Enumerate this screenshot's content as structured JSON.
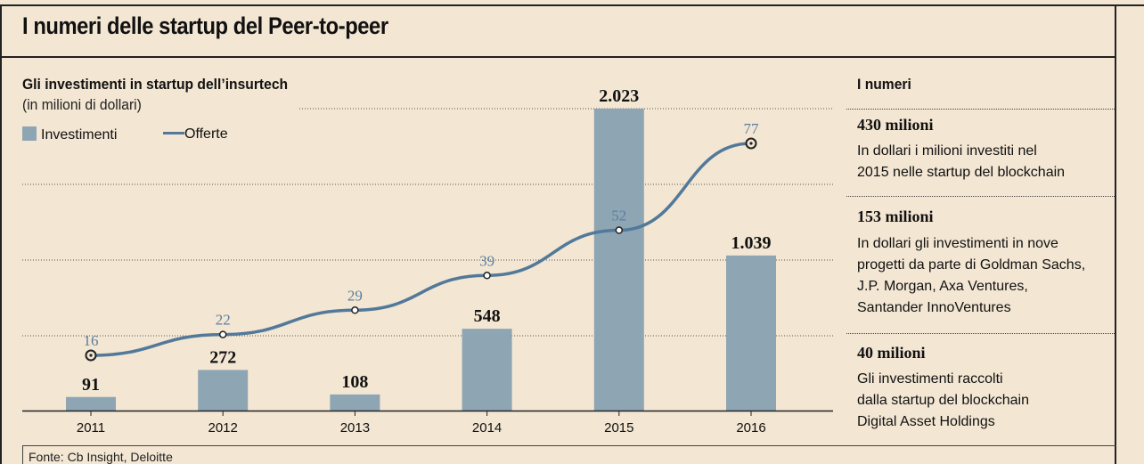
{
  "header": {
    "title": "I numeri delle startup del Peer-to-peer"
  },
  "chart_data": {
    "type": "bar",
    "title": "Gli investimenti in startup dell’insurtech",
    "subtitle": "(in milioni di dollari)",
    "categories": [
      "2011",
      "2012",
      "2013",
      "2014",
      "2015",
      "2016"
    ],
    "series": [
      {
        "name": "Investimenti",
        "kind": "bar",
        "color": "#8ea5b4",
        "values": [
          91,
          272,
          108,
          548,
          2023,
          1039
        ],
        "labels": [
          "91",
          "272",
          "108",
          "548",
          "2.023",
          "1.039"
        ]
      },
      {
        "name": "Offerte",
        "kind": "line",
        "color": "#52799a",
        "values": [
          16,
          22,
          29,
          39,
          52,
          77
        ],
        "labels": [
          "16",
          "22",
          "29",
          "39",
          "52",
          "77"
        ]
      }
    ],
    "legend": "top-left",
    "grid": true
  },
  "panel": {
    "heading": "I numeri",
    "stats": [
      {
        "value": "430 milioni",
        "lines": [
          "In dollari i milioni investiti nel",
          "2015 nelle startup del blockchain"
        ]
      },
      {
        "value": "153 milioni",
        "lines": [
          "In dollari gli investimenti in nove",
          "progetti da parte di Goldman Sachs,",
          "J.P. Morgan, Axa Ventures,",
          "Santander InnoVentures"
        ]
      },
      {
        "value": "40 milioni",
        "lines": [
          "Gli investimenti raccolti",
          "dalla startup del blockchain",
          "Digital Asset Holdings"
        ]
      }
    ]
  },
  "footer": {
    "source": "Fonte: Cb Insight, Deloitte"
  }
}
